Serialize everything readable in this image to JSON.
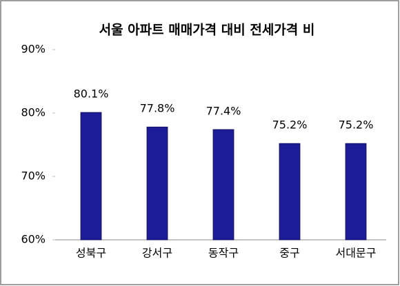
{
  "chart_data": {
    "type": "bar",
    "title": "서울 아파트 매매가격 대비 전세가격 비",
    "categories": [
      "성북구",
      "강서구",
      "동작구",
      "중구",
      "서대문구"
    ],
    "values": [
      80.1,
      77.8,
      77.4,
      75.2,
      75.2
    ],
    "value_labels": [
      "80.1%",
      "77.8%",
      "77.4%",
      "75.2%",
      "75.2%"
    ],
    "color": "#1c1c96",
    "ylim": [
      60,
      90
    ],
    "yticks": [
      {
        "value": 60,
        "label": "60%"
      },
      {
        "value": 70,
        "label": "70%"
      },
      {
        "value": 80,
        "label": "80%"
      },
      {
        "value": 90,
        "label": "90%"
      }
    ],
    "grid": false
  }
}
